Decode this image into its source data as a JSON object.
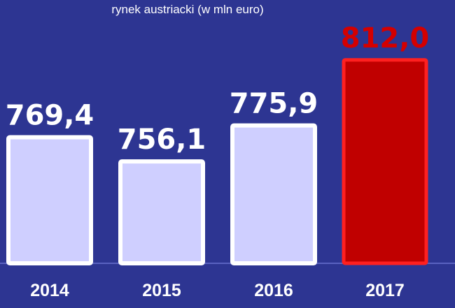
{
  "chart_data": {
    "type": "bar",
    "subtitle": "rynek austriacki (w mln euro)",
    "categories": [
      "2014",
      "2015",
      "2016",
      "2017"
    ],
    "values": [
      769.4,
      756.1,
      775.9,
      812.0
    ],
    "value_labels": [
      "769,4",
      "756,1",
      "775,9",
      "812,0"
    ],
    "highlight_index": 3,
    "y_axis_shown": false,
    "grid": false,
    "legend": "none"
  },
  "colors": {
    "background": "#2d3592",
    "bar_fill": "#cfcfff",
    "bar_stroke": "#ffffff",
    "highlight_fill": "#c00000",
    "highlight_stroke": "#ff2020",
    "highlight_label": "#d40000",
    "text": "#ffffff"
  }
}
